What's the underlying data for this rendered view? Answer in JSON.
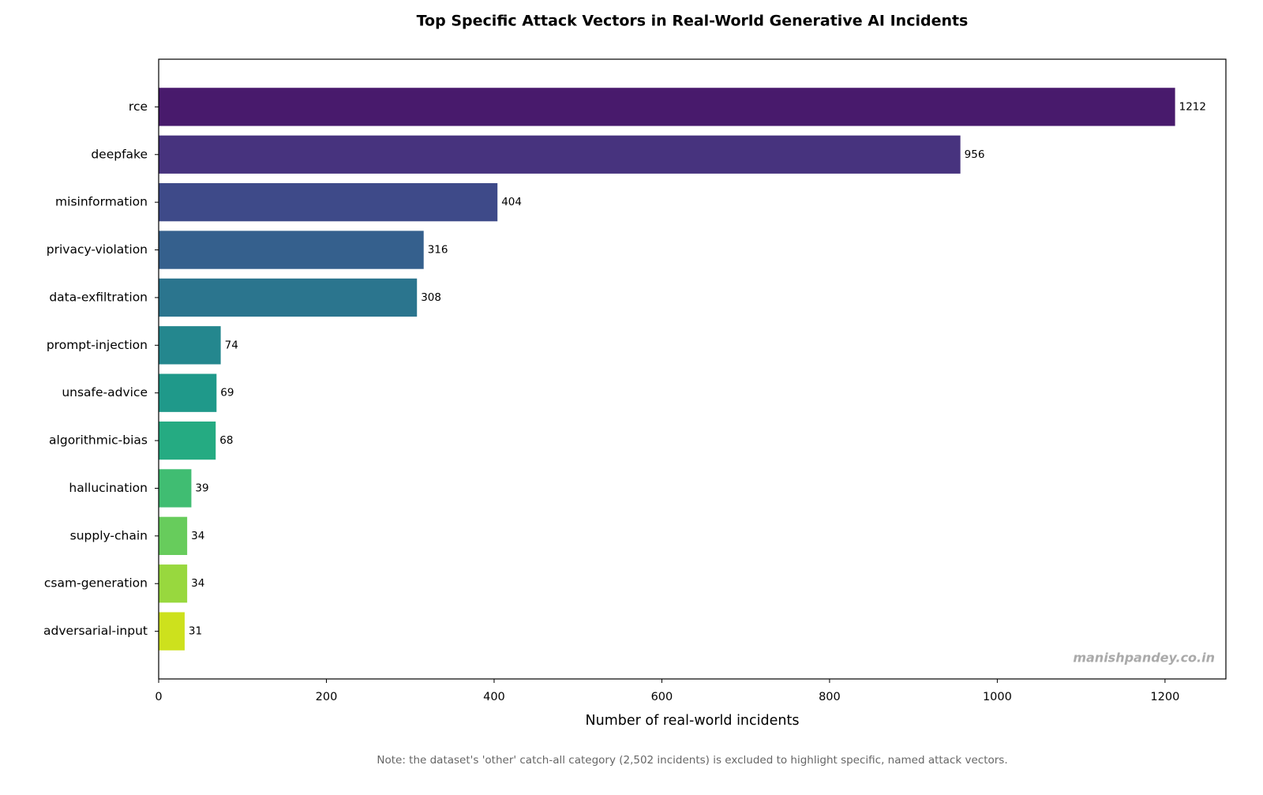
{
  "chart_data": {
    "type": "barh",
    "title": "Top Specific Attack Vectors in Real-World Generative AI Incidents",
    "categories": [
      "rce",
      "deepfake",
      "misinformation",
      "privacy-violation",
      "data-exfiltration",
      "prompt-injection",
      "unsafe-advice",
      "algorithmic-bias",
      "hallucination",
      "supply-chain",
      "csam-generation",
      "adversarial-input"
    ],
    "values": [
      1212,
      956,
      404,
      316,
      308,
      74,
      69,
      68,
      39,
      34,
      34,
      31
    ],
    "colors": [
      "#481a6c",
      "#47337e",
      "#3e4a89",
      "#35608d",
      "#2b758e",
      "#24878e",
      "#1f998a",
      "#25ab82",
      "#40bd72",
      "#67cc5c",
      "#98d83e",
      "#cde11d"
    ],
    "x_label": "Number of real-world incidents",
    "xlim": [
      0,
      1272.6
    ],
    "xticks": [
      0,
      200,
      400,
      600,
      800,
      1000,
      1200
    ],
    "watermark": "manishpandey.co.in",
    "note": "Note: the dataset's 'other' catch-all category (2,502 incidents) is excluded to highlight specific, named attack vectors."
  }
}
